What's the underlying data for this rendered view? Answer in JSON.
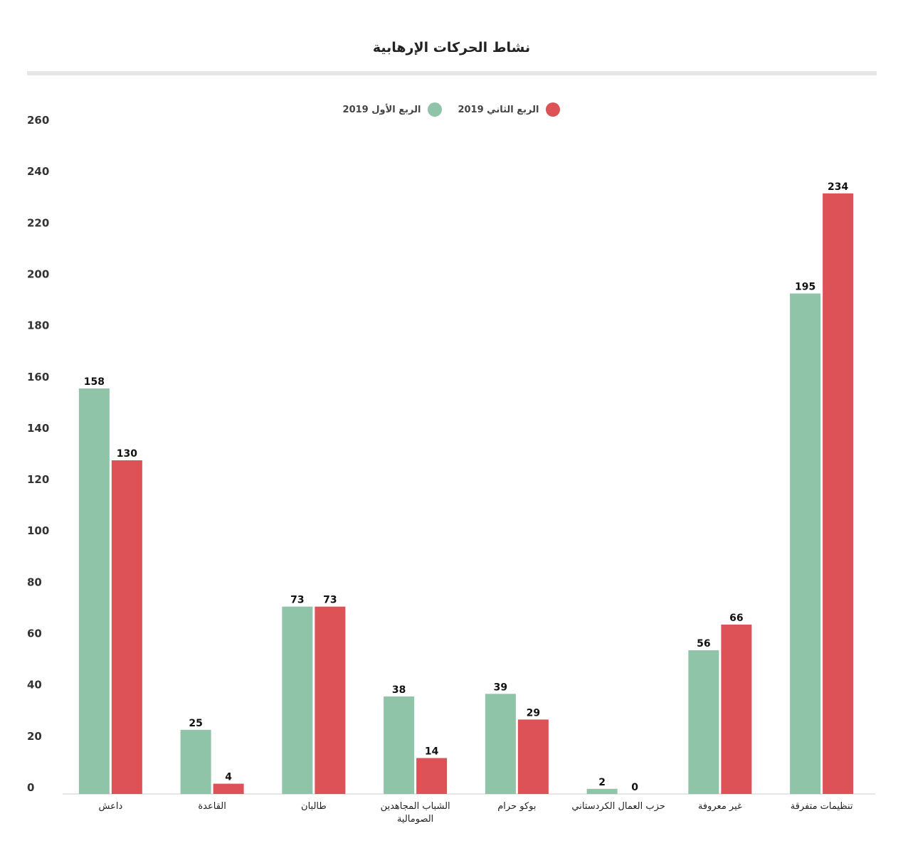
{
  "chart_data": {
    "type": "bar",
    "title": "نشاط الحركات الإرهابية",
    "categories": [
      "داعش",
      "القاعدة",
      "طالبان",
      [
        "الشباب المجاهدين",
        "الصومالية"
      ],
      "بوكو حرام",
      "حزب العمال الكردستاني",
      "غير معروفة",
      "تنظيمات متفرقة"
    ],
    "series": [
      {
        "name": "الربع الأول 2019",
        "color": "#8fc4a8",
        "values": [
          158,
          25,
          73,
          38,
          39,
          2,
          56,
          195
        ]
      },
      {
        "name": "الربع الثاني 2019",
        "color": "#dd5257",
        "values": [
          130,
          4,
          73,
          14,
          29,
          0,
          66,
          234
        ]
      }
    ],
    "yticks": [
      0,
      20,
      40,
      60,
      80,
      100,
      120,
      140,
      160,
      180,
      200,
      220,
      240,
      260
    ],
    "ylim": [
      0,
      260
    ],
    "grid": false,
    "legend_position": "top-center"
  }
}
